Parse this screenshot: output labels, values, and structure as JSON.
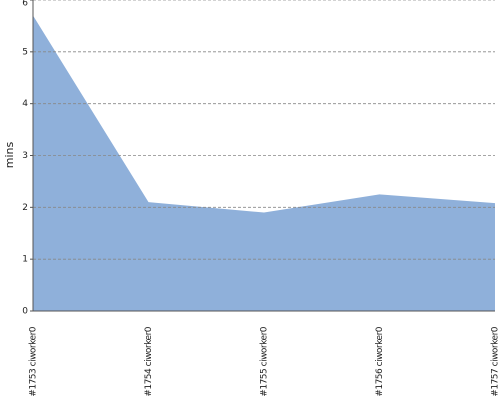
{
  "chart_data": {
    "type": "area",
    "y_label": "mins",
    "categories": [
      "#1753 ciworker0",
      "#1754 ciworker0",
      "#1755 ciworker0",
      "#1756 ciworker0",
      "#1757 ciworker0"
    ],
    "values": [
      5.7,
      2.1,
      1.9,
      2.25,
      2.08
    ],
    "color": "#8fb0da",
    "ylim": [
      0,
      6
    ],
    "yticks": [
      0,
      1,
      2,
      3,
      4,
      5,
      6
    ],
    "grid": true
  }
}
